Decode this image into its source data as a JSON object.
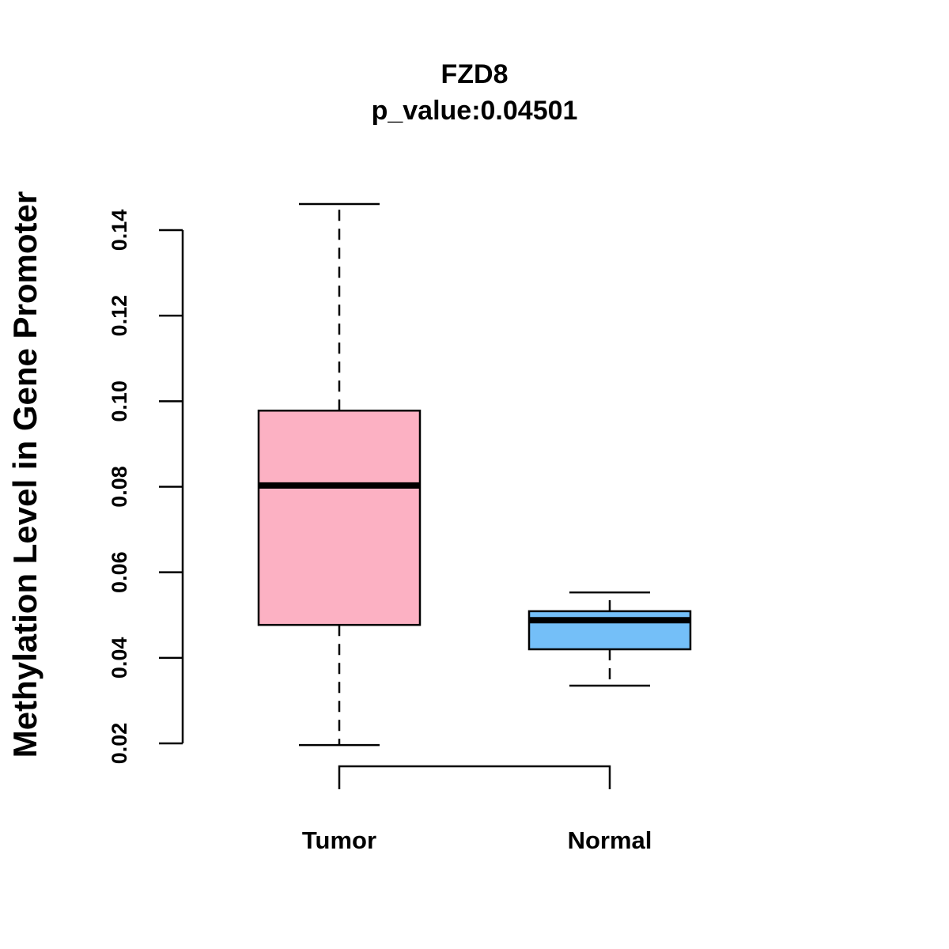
{
  "chart_data": {
    "type": "boxplot",
    "title": "FZD8",
    "subtitle": "p_value:0.04501",
    "xlabel": "",
    "ylabel": "Methylation Level in Gene Promoter",
    "ylim": [
      0.02,
      0.14
    ],
    "yticks": [
      "0.02",
      "0.04",
      "0.06",
      "0.08",
      "0.10",
      "0.12",
      "0.14"
    ],
    "ytick_values": [
      0.02,
      0.04,
      0.06,
      0.08,
      0.1,
      0.12,
      0.14
    ],
    "grid": false,
    "categories": [
      "Tumor",
      "Normal"
    ],
    "series": [
      {
        "name": "Tumor",
        "color": "#FCB1C3",
        "whisker_low": 0.0196,
        "q1": 0.0477,
        "median": 0.0803,
        "q3": 0.0978,
        "whisker_high": 0.1461
      },
      {
        "name": "Normal",
        "color": "#74BFF8",
        "whisker_low": 0.0335,
        "q1": 0.042,
        "median": 0.0488,
        "q3": 0.0509,
        "whisker_high": 0.0553
      }
    ],
    "annotations": [
      "comparison bracket between Tumor and Normal"
    ]
  }
}
